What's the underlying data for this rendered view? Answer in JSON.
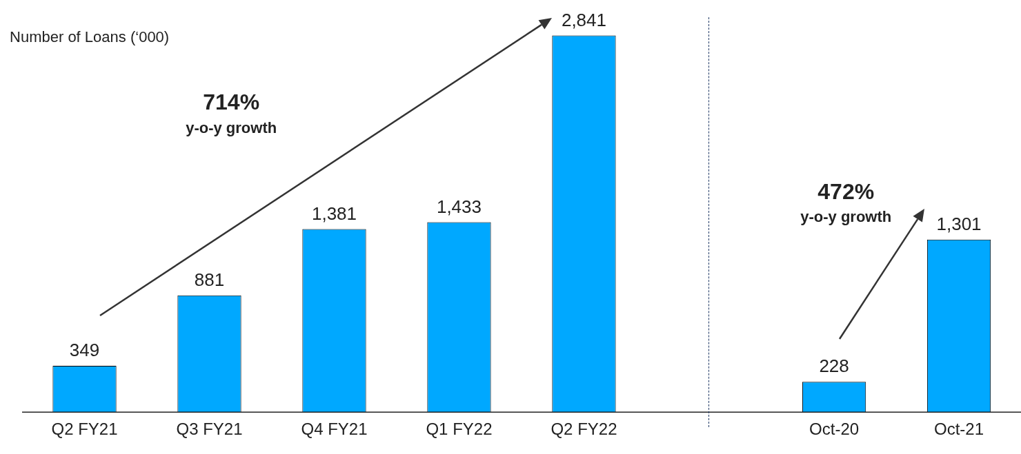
{
  "chart_data": [
    {
      "type": "bar",
      "title": "Number of Loans (‘000)",
      "categories": [
        "Q2 FY21",
        "Q3 FY21",
        "Q4 FY21",
        "Q1 FY22",
        "Q2 FY22"
      ],
      "values": [
        349,
        881,
        1381,
        1433,
        2841
      ],
      "color": "#00a8ff",
      "grid": false,
      "legend": false,
      "value_labels": [
        "349",
        "881",
        "1,381",
        "1,433",
        "2,841"
      ],
      "annotations": [
        "714%",
        "y-o-y growth"
      ]
    },
    {
      "type": "bar",
      "categories": [
        "Oct-20",
        "Oct-21"
      ],
      "values": [
        228,
        1301
      ],
      "color": "#00a8ff",
      "grid": false,
      "legend": false,
      "value_labels": [
        "228",
        "1,301"
      ],
      "annotations": [
        "472%",
        "y-o-y growth"
      ]
    }
  ]
}
